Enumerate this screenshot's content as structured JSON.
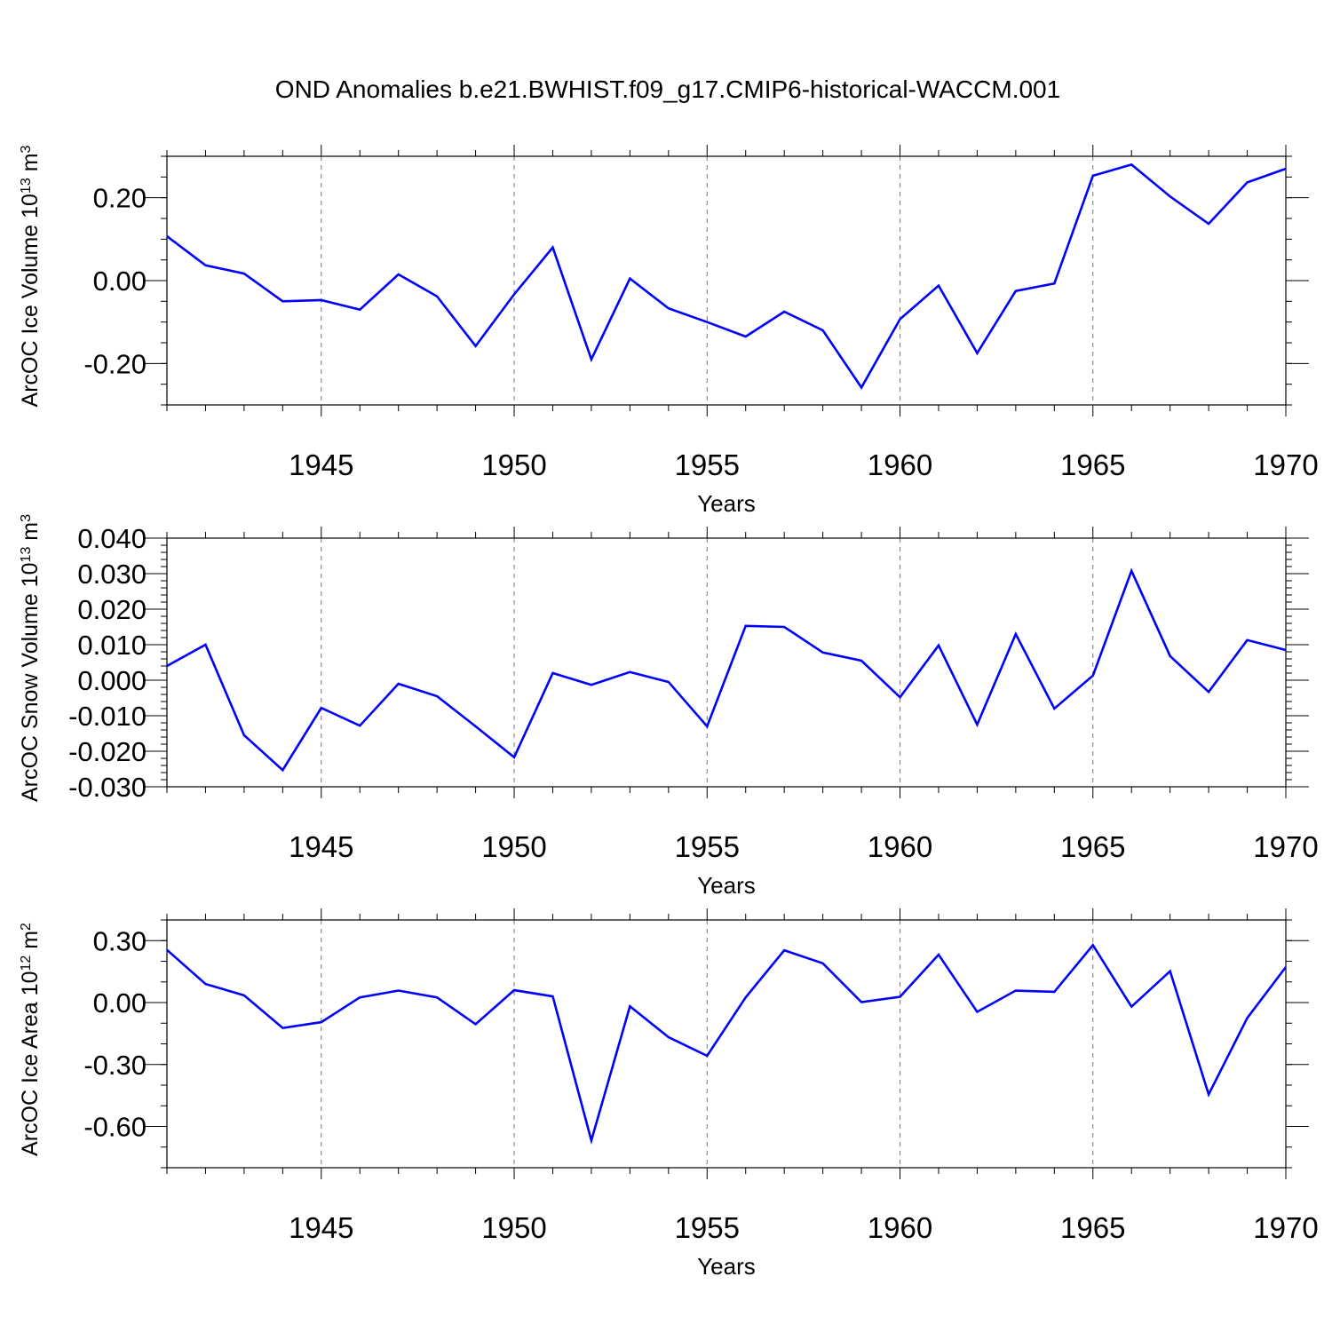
{
  "title": "OND Anomalies b.e21.BWHIST.f09_g17.CMIP6-historical-WACCM.001",
  "series_color": "#0000ff",
  "chart_data": [
    {
      "type": "line",
      "ylabel": "ArcOC Ice Volume 10",
      "ylabel_exp": "13",
      "ylabel_unit": "m",
      "ylabel_unit_exp": "3",
      "xlabel": "Years",
      "xlim": [
        1941,
        1970
      ],
      "ylim": [
        -0.3,
        0.3
      ],
      "yticks": [
        -0.2,
        0.0,
        0.2
      ],
      "ytick_labels": [
        "-0.20",
        "0.00",
        "0.20"
      ],
      "yminor_step": 0.05,
      "xticks": [
        1945,
        1950,
        1955,
        1960,
        1965,
        1970
      ],
      "xtick_labels": [
        "1945",
        "1950",
        "1955",
        "1960",
        "1965",
        "1970"
      ],
      "grid_x": [
        1945,
        1950,
        1955,
        1960,
        1965
      ],
      "series": [
        {
          "name": "ArcOC Ice Volume",
          "x": [
            1941,
            1942,
            1943,
            1944,
            1945,
            1946,
            1947,
            1948,
            1949,
            1950,
            1951,
            1952,
            1953,
            1954,
            1955,
            1956,
            1957,
            1958,
            1959,
            1960,
            1961,
            1962,
            1963,
            1964,
            1965,
            1966,
            1967,
            1968,
            1969,
            1970
          ],
          "values": [
            0.107,
            0.037,
            0.017,
            -0.05,
            -0.047,
            -0.07,
            0.015,
            -0.038,
            -0.158,
            -0.033,
            0.08,
            -0.19,
            0.005,
            -0.067,
            -0.1,
            -0.135,
            -0.075,
            -0.12,
            -0.258,
            -0.093,
            -0.012,
            -0.175,
            -0.025,
            -0.007,
            0.253,
            0.28,
            0.203,
            0.137,
            0.237,
            0.27
          ]
        }
      ]
    },
    {
      "type": "line",
      "ylabel": "ArcOC Snow Volume 10",
      "ylabel_exp": "13",
      "ylabel_unit": "m",
      "ylabel_unit_exp": "3",
      "xlabel": "Years",
      "xlim": [
        1941,
        1970
      ],
      "ylim": [
        -0.03,
        0.04
      ],
      "yticks": [
        -0.03,
        -0.02,
        -0.01,
        0.0,
        0.01,
        0.02,
        0.03,
        0.04
      ],
      "ytick_labels": [
        "-0.030",
        "-0.020",
        "-0.010",
        "0.000",
        "0.010",
        "0.020",
        "0.030",
        "0.040"
      ],
      "yminor_step": 0.002,
      "xticks": [
        1945,
        1950,
        1955,
        1960,
        1965,
        1970
      ],
      "xtick_labels": [
        "1945",
        "1950",
        "1955",
        "1960",
        "1965",
        "1970"
      ],
      "grid_x": [
        1945,
        1950,
        1955,
        1960,
        1965
      ],
      "series": [
        {
          "name": "ArcOC Snow Volume",
          "x": [
            1941,
            1942,
            1943,
            1944,
            1945,
            1946,
            1947,
            1948,
            1949,
            1950,
            1951,
            1952,
            1953,
            1954,
            1955,
            1956,
            1957,
            1958,
            1959,
            1960,
            1961,
            1962,
            1963,
            1964,
            1965,
            1966,
            1967,
            1968,
            1969,
            1970
          ],
          "values": [
            0.004,
            0.01,
            -0.0155,
            -0.0253,
            -0.0078,
            -0.0128,
            -0.001,
            -0.0045,
            -0.013,
            -0.0217,
            0.002,
            -0.0013,
            0.0023,
            -0.0005,
            -0.013,
            0.0153,
            0.015,
            0.0078,
            0.0055,
            -0.0048,
            0.0098,
            -0.0125,
            0.013,
            -0.008,
            0.0013,
            0.0308,
            0.0068,
            -0.0033,
            0.0113,
            0.0085
          ]
        }
      ]
    },
    {
      "type": "line",
      "ylabel": "ArcOC Ice Area 10",
      "ylabel_exp": "12",
      "ylabel_unit": "m",
      "ylabel_unit_exp": "2",
      "xlabel": "Years",
      "xlim": [
        1941,
        1970
      ],
      "ylim": [
        -0.8,
        0.4
      ],
      "yticks": [
        -0.6,
        -0.3,
        0.0,
        0.3
      ],
      "ytick_labels": [
        "-0.60",
        "-0.30",
        "0.00",
        "0.30"
      ],
      "yminor_step": 0.1,
      "xticks": [
        1945,
        1950,
        1955,
        1960,
        1965,
        1970
      ],
      "xtick_labels": [
        "1945",
        "1950",
        "1955",
        "1960",
        "1965",
        "1970"
      ],
      "grid_x": [
        1945,
        1950,
        1955,
        1960,
        1965
      ],
      "series": [
        {
          "name": "ArcOC Ice Area",
          "x": [
            1941,
            1942,
            1943,
            1944,
            1945,
            1946,
            1947,
            1948,
            1949,
            1950,
            1951,
            1952,
            1953,
            1954,
            1955,
            1956,
            1957,
            1958,
            1959,
            1960,
            1961,
            1962,
            1963,
            1964,
            1965,
            1966,
            1967,
            1968,
            1969,
            1970
          ],
          "values": [
            0.255,
            0.09,
            0.035,
            -0.123,
            -0.095,
            0.025,
            0.058,
            0.025,
            -0.105,
            0.06,
            0.03,
            -0.668,
            -0.018,
            -0.168,
            -0.258,
            0.025,
            0.253,
            0.19,
            0.002,
            0.028,
            0.232,
            -0.045,
            0.058,
            0.052,
            0.278,
            -0.02,
            0.152,
            -0.445,
            -0.075,
            0.172
          ]
        }
      ]
    }
  ]
}
